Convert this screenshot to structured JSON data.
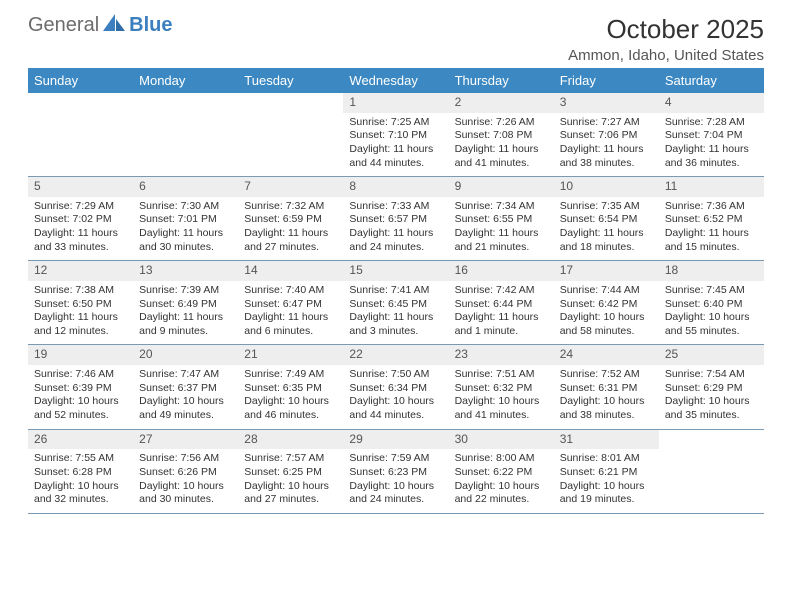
{
  "logo": {
    "text1": "General",
    "text2": "Blue",
    "icon_color": "#3b7fbf"
  },
  "title": "October 2025",
  "location": "Ammon, Idaho, United States",
  "colors": {
    "header_bg": "#3b88c3",
    "header_text": "#ffffff",
    "daynum_bg": "#eeeeee",
    "row_border": "#7a99b5",
    "body_text": "#333333"
  },
  "days_of_week": [
    "Sunday",
    "Monday",
    "Tuesday",
    "Wednesday",
    "Thursday",
    "Friday",
    "Saturday"
  ],
  "weeks": [
    [
      null,
      null,
      null,
      {
        "n": "1",
        "sunrise": "Sunrise: 7:25 AM",
        "sunset": "Sunset: 7:10 PM",
        "daylight": "Daylight: 11 hours and 44 minutes."
      },
      {
        "n": "2",
        "sunrise": "Sunrise: 7:26 AM",
        "sunset": "Sunset: 7:08 PM",
        "daylight": "Daylight: 11 hours and 41 minutes."
      },
      {
        "n": "3",
        "sunrise": "Sunrise: 7:27 AM",
        "sunset": "Sunset: 7:06 PM",
        "daylight": "Daylight: 11 hours and 38 minutes."
      },
      {
        "n": "4",
        "sunrise": "Sunrise: 7:28 AM",
        "sunset": "Sunset: 7:04 PM",
        "daylight": "Daylight: 11 hours and 36 minutes."
      }
    ],
    [
      {
        "n": "5",
        "sunrise": "Sunrise: 7:29 AM",
        "sunset": "Sunset: 7:02 PM",
        "daylight": "Daylight: 11 hours and 33 minutes."
      },
      {
        "n": "6",
        "sunrise": "Sunrise: 7:30 AM",
        "sunset": "Sunset: 7:01 PM",
        "daylight": "Daylight: 11 hours and 30 minutes."
      },
      {
        "n": "7",
        "sunrise": "Sunrise: 7:32 AM",
        "sunset": "Sunset: 6:59 PM",
        "daylight": "Daylight: 11 hours and 27 minutes."
      },
      {
        "n": "8",
        "sunrise": "Sunrise: 7:33 AM",
        "sunset": "Sunset: 6:57 PM",
        "daylight": "Daylight: 11 hours and 24 minutes."
      },
      {
        "n": "9",
        "sunrise": "Sunrise: 7:34 AM",
        "sunset": "Sunset: 6:55 PM",
        "daylight": "Daylight: 11 hours and 21 minutes."
      },
      {
        "n": "10",
        "sunrise": "Sunrise: 7:35 AM",
        "sunset": "Sunset: 6:54 PM",
        "daylight": "Daylight: 11 hours and 18 minutes."
      },
      {
        "n": "11",
        "sunrise": "Sunrise: 7:36 AM",
        "sunset": "Sunset: 6:52 PM",
        "daylight": "Daylight: 11 hours and 15 minutes."
      }
    ],
    [
      {
        "n": "12",
        "sunrise": "Sunrise: 7:38 AM",
        "sunset": "Sunset: 6:50 PM",
        "daylight": "Daylight: 11 hours and 12 minutes."
      },
      {
        "n": "13",
        "sunrise": "Sunrise: 7:39 AM",
        "sunset": "Sunset: 6:49 PM",
        "daylight": "Daylight: 11 hours and 9 minutes."
      },
      {
        "n": "14",
        "sunrise": "Sunrise: 7:40 AM",
        "sunset": "Sunset: 6:47 PM",
        "daylight": "Daylight: 11 hours and 6 minutes."
      },
      {
        "n": "15",
        "sunrise": "Sunrise: 7:41 AM",
        "sunset": "Sunset: 6:45 PM",
        "daylight": "Daylight: 11 hours and 3 minutes."
      },
      {
        "n": "16",
        "sunrise": "Sunrise: 7:42 AM",
        "sunset": "Sunset: 6:44 PM",
        "daylight": "Daylight: 11 hours and 1 minute."
      },
      {
        "n": "17",
        "sunrise": "Sunrise: 7:44 AM",
        "sunset": "Sunset: 6:42 PM",
        "daylight": "Daylight: 10 hours and 58 minutes."
      },
      {
        "n": "18",
        "sunrise": "Sunrise: 7:45 AM",
        "sunset": "Sunset: 6:40 PM",
        "daylight": "Daylight: 10 hours and 55 minutes."
      }
    ],
    [
      {
        "n": "19",
        "sunrise": "Sunrise: 7:46 AM",
        "sunset": "Sunset: 6:39 PM",
        "daylight": "Daylight: 10 hours and 52 minutes."
      },
      {
        "n": "20",
        "sunrise": "Sunrise: 7:47 AM",
        "sunset": "Sunset: 6:37 PM",
        "daylight": "Daylight: 10 hours and 49 minutes."
      },
      {
        "n": "21",
        "sunrise": "Sunrise: 7:49 AM",
        "sunset": "Sunset: 6:35 PM",
        "daylight": "Daylight: 10 hours and 46 minutes."
      },
      {
        "n": "22",
        "sunrise": "Sunrise: 7:50 AM",
        "sunset": "Sunset: 6:34 PM",
        "daylight": "Daylight: 10 hours and 44 minutes."
      },
      {
        "n": "23",
        "sunrise": "Sunrise: 7:51 AM",
        "sunset": "Sunset: 6:32 PM",
        "daylight": "Daylight: 10 hours and 41 minutes."
      },
      {
        "n": "24",
        "sunrise": "Sunrise: 7:52 AM",
        "sunset": "Sunset: 6:31 PM",
        "daylight": "Daylight: 10 hours and 38 minutes."
      },
      {
        "n": "25",
        "sunrise": "Sunrise: 7:54 AM",
        "sunset": "Sunset: 6:29 PM",
        "daylight": "Daylight: 10 hours and 35 minutes."
      }
    ],
    [
      {
        "n": "26",
        "sunrise": "Sunrise: 7:55 AM",
        "sunset": "Sunset: 6:28 PM",
        "daylight": "Daylight: 10 hours and 32 minutes."
      },
      {
        "n": "27",
        "sunrise": "Sunrise: 7:56 AM",
        "sunset": "Sunset: 6:26 PM",
        "daylight": "Daylight: 10 hours and 30 minutes."
      },
      {
        "n": "28",
        "sunrise": "Sunrise: 7:57 AM",
        "sunset": "Sunset: 6:25 PM",
        "daylight": "Daylight: 10 hours and 27 minutes."
      },
      {
        "n": "29",
        "sunrise": "Sunrise: 7:59 AM",
        "sunset": "Sunset: 6:23 PM",
        "daylight": "Daylight: 10 hours and 24 minutes."
      },
      {
        "n": "30",
        "sunrise": "Sunrise: 8:00 AM",
        "sunset": "Sunset: 6:22 PM",
        "daylight": "Daylight: 10 hours and 22 minutes."
      },
      {
        "n": "31",
        "sunrise": "Sunrise: 8:01 AM",
        "sunset": "Sunset: 6:21 PM",
        "daylight": "Daylight: 10 hours and 19 minutes."
      },
      null
    ]
  ]
}
